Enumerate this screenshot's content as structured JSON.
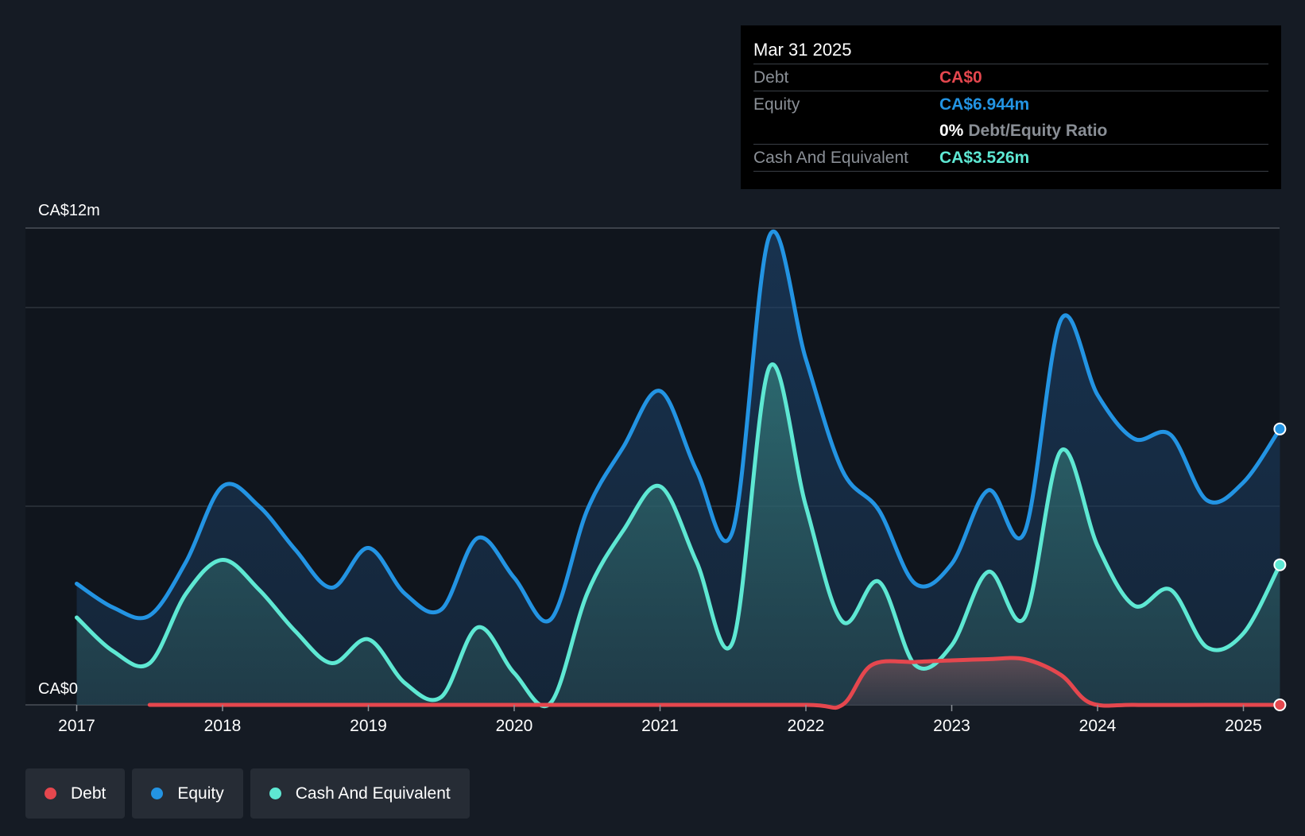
{
  "tooltip": {
    "date": "Mar 31 2025",
    "debt_label": "Debt",
    "debt_value": "CA$0",
    "equity_label": "Equity",
    "equity_value": "CA$6.944m",
    "ratio_pct": "0%",
    "ratio_label": "Debt/Equity Ratio",
    "cash_label": "Cash And Equivalent",
    "cash_value": "CA$3.526m"
  },
  "legend": [
    {
      "label": "Debt",
      "color": "#e5474e"
    },
    {
      "label": "Equity",
      "color": "#2394e3"
    },
    {
      "label": "Cash And Equivalent",
      "color": "#5ee8d3"
    }
  ],
  "colors": {
    "debt": "#e5474e",
    "equity": "#2394e3",
    "cash": "#5ee8d3"
  },
  "chart_data": {
    "type": "area",
    "title": "",
    "xlabel": "",
    "ylabel": "",
    "ylim": [
      0,
      12
    ],
    "y_ticks": [
      0,
      5,
      10,
      12
    ],
    "y_tick_labels": {
      "top": "CA$12m",
      "bottom": "CA$0"
    },
    "x_ticks": [
      "2017",
      "2018",
      "2019",
      "2020",
      "2021",
      "2022",
      "2023",
      "2024",
      "2025"
    ],
    "series": [
      {
        "name": "Equity",
        "color": "#2394e3",
        "points": [
          [
            2017.0,
            3.05
          ],
          [
            2017.25,
            2.45
          ],
          [
            2017.5,
            2.25
          ],
          [
            2017.75,
            3.6
          ],
          [
            2018.0,
            5.5
          ],
          [
            2018.25,
            5.0
          ],
          [
            2018.5,
            3.9
          ],
          [
            2018.75,
            2.95
          ],
          [
            2019.0,
            3.95
          ],
          [
            2019.25,
            2.8
          ],
          [
            2019.5,
            2.4
          ],
          [
            2019.75,
            4.2
          ],
          [
            2020.0,
            3.2
          ],
          [
            2020.25,
            2.15
          ],
          [
            2020.5,
            4.9
          ],
          [
            2020.75,
            6.5
          ],
          [
            2021.0,
            7.9
          ],
          [
            2021.25,
            5.9
          ],
          [
            2021.5,
            4.4
          ],
          [
            2021.75,
            11.8
          ],
          [
            2022.0,
            8.7
          ],
          [
            2022.25,
            5.9
          ],
          [
            2022.5,
            4.9
          ],
          [
            2022.75,
            3.05
          ],
          [
            2023.0,
            3.55
          ],
          [
            2023.25,
            5.4
          ],
          [
            2023.5,
            4.35
          ],
          [
            2023.75,
            9.7
          ],
          [
            2024.0,
            7.8
          ],
          [
            2024.25,
            6.7
          ],
          [
            2024.5,
            6.8
          ],
          [
            2024.75,
            5.15
          ],
          [
            2025.0,
            5.6
          ],
          [
            2025.25,
            6.944
          ]
        ]
      },
      {
        "name": "Cash And Equivalent",
        "color": "#5ee8d3",
        "points": [
          [
            2017.0,
            2.2
          ],
          [
            2017.25,
            1.35
          ],
          [
            2017.5,
            1.05
          ],
          [
            2017.75,
            2.8
          ],
          [
            2018.0,
            3.65
          ],
          [
            2018.25,
            2.9
          ],
          [
            2018.5,
            1.85
          ],
          [
            2018.75,
            1.05
          ],
          [
            2019.0,
            1.65
          ],
          [
            2019.25,
            0.55
          ],
          [
            2019.5,
            0.2
          ],
          [
            2019.75,
            1.95
          ],
          [
            2020.0,
            0.8
          ],
          [
            2020.25,
            0.05
          ],
          [
            2020.5,
            2.8
          ],
          [
            2020.75,
            4.4
          ],
          [
            2021.0,
            5.5
          ],
          [
            2021.25,
            3.6
          ],
          [
            2021.5,
            1.6
          ],
          [
            2021.75,
            8.5
          ],
          [
            2022.0,
            5.0
          ],
          [
            2022.25,
            2.1
          ],
          [
            2022.5,
            3.1
          ],
          [
            2022.75,
            1.0
          ],
          [
            2023.0,
            1.5
          ],
          [
            2023.25,
            3.35
          ],
          [
            2023.5,
            2.2
          ],
          [
            2023.75,
            6.4
          ],
          [
            2024.0,
            4.0
          ],
          [
            2024.25,
            2.5
          ],
          [
            2024.5,
            2.9
          ],
          [
            2024.75,
            1.45
          ],
          [
            2025.0,
            1.8
          ],
          [
            2025.25,
            3.526
          ]
        ]
      },
      {
        "name": "Debt",
        "color": "#e5474e",
        "points": [
          [
            2017.5,
            0.0
          ],
          [
            2018.0,
            0.0
          ],
          [
            2019.0,
            0.0
          ],
          [
            2020.0,
            0.0
          ],
          [
            2021.0,
            0.0
          ],
          [
            2022.0,
            0.0
          ],
          [
            2022.25,
            0.0
          ],
          [
            2022.45,
            1.0
          ],
          [
            2022.75,
            1.08
          ],
          [
            2023.0,
            1.12
          ],
          [
            2023.25,
            1.15
          ],
          [
            2023.5,
            1.15
          ],
          [
            2023.75,
            0.75
          ],
          [
            2023.95,
            0.05
          ],
          [
            2024.25,
            0.0
          ],
          [
            2024.75,
            0.0
          ],
          [
            2025.25,
            0.0
          ]
        ]
      }
    ]
  }
}
